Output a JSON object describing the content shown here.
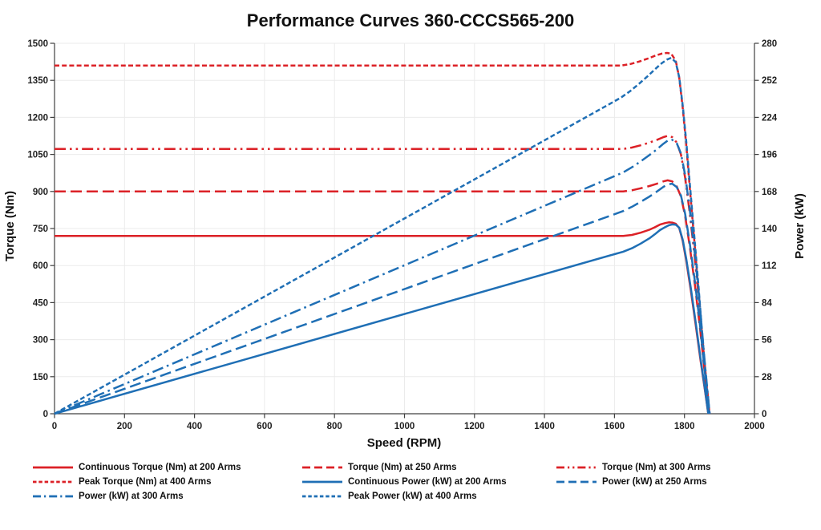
{
  "colors": {
    "torque_red": "#dc2127",
    "power_blue": "#1f6fb5",
    "grid": "#ebebeb",
    "axis": "#404040",
    "text": "#1f1f1f"
  },
  "chart_data": {
    "type": "line",
    "title": "Performance Curves 360-CCCS565-200",
    "xlabel": "Speed (RPM)",
    "ylabel_left": "Torque (Nm)",
    "ylabel_right": "Power (kW)",
    "xlim": [
      0,
      2000
    ],
    "ylim_left": [
      0,
      1500
    ],
    "ylim_right": [
      0,
      280
    ],
    "x_ticks": [
      0,
      200,
      400,
      600,
      800,
      1000,
      1200,
      1400,
      1600,
      1800,
      2000
    ],
    "y_left_ticks": [
      0,
      150,
      300,
      450,
      600,
      750,
      900,
      1050,
      1200,
      1350,
      1500
    ],
    "y_right_ticks": [
      0,
      28,
      56,
      84,
      112,
      140,
      168,
      196,
      224,
      252,
      280
    ],
    "grid": true,
    "legend_position": "bottom",
    "series": [
      {
        "name": "Continuous Torque (Nm) at 200 Arms",
        "slug": "continuous-torque-200-arms",
        "axis": "left",
        "color": "torque_red",
        "dash": "solid",
        "points": [
          [
            0,
            720
          ],
          [
            1600,
            720
          ],
          [
            1625,
            720
          ],
          [
            1650,
            724
          ],
          [
            1675,
            733
          ],
          [
            1700,
            745
          ],
          [
            1715,
            755
          ],
          [
            1730,
            766
          ],
          [
            1745,
            772
          ],
          [
            1755,
            775
          ],
          [
            1765,
            774
          ],
          [
            1775,
            769
          ],
          [
            1785,
            752
          ],
          [
            1795,
            700
          ],
          [
            1805,
            620
          ],
          [
            1818,
            500
          ],
          [
            1832,
            360
          ],
          [
            1846,
            215
          ],
          [
            1858,
            100
          ],
          [
            1868,
            0
          ]
        ]
      },
      {
        "name": "Torque (Nm) at 250 Arms",
        "slug": "torque-250-arms",
        "axis": "left",
        "color": "torque_red",
        "dash": "long-dash",
        "points": [
          [
            0,
            900
          ],
          [
            1600,
            900
          ],
          [
            1625,
            900
          ],
          [
            1650,
            905
          ],
          [
            1675,
            913
          ],
          [
            1700,
            922
          ],
          [
            1720,
            931
          ],
          [
            1740,
            941
          ],
          [
            1752,
            945
          ],
          [
            1765,
            941
          ],
          [
            1778,
            920
          ],
          [
            1790,
            880
          ],
          [
            1802,
            800
          ],
          [
            1815,
            680
          ],
          [
            1830,
            520
          ],
          [
            1845,
            340
          ],
          [
            1858,
            165
          ],
          [
            1870,
            0
          ]
        ]
      },
      {
        "name": "Torque (Nm) at 300 Arms",
        "slug": "torque-300-arms",
        "axis": "left",
        "color": "torque_red",
        "dash": "dash-dot-dot",
        "points": [
          [
            0,
            1072
          ],
          [
            1600,
            1072
          ],
          [
            1625,
            1072
          ],
          [
            1650,
            1078
          ],
          [
            1675,
            1087
          ],
          [
            1700,
            1098
          ],
          [
            1720,
            1108
          ],
          [
            1740,
            1120
          ],
          [
            1752,
            1125
          ],
          [
            1765,
            1120
          ],
          [
            1778,
            1098
          ],
          [
            1790,
            1050
          ],
          [
            1802,
            955
          ],
          [
            1815,
            815
          ],
          [
            1830,
            625
          ],
          [
            1845,
            410
          ],
          [
            1858,
            200
          ],
          [
            1872,
            0
          ]
        ]
      },
      {
        "name": "Peak Torque (Nm) at 400 Arms",
        "slug": "peak-torque-400-arms",
        "axis": "left",
        "color": "torque_red",
        "dash": "short-dash",
        "points": [
          [
            0,
            1410
          ],
          [
            1600,
            1410
          ],
          [
            1620,
            1410
          ],
          [
            1645,
            1416
          ],
          [
            1670,
            1426
          ],
          [
            1695,
            1438
          ],
          [
            1715,
            1449
          ],
          [
            1735,
            1458
          ],
          [
            1750,
            1461
          ],
          [
            1762,
            1458
          ],
          [
            1775,
            1430
          ],
          [
            1785,
            1360
          ],
          [
            1795,
            1240
          ],
          [
            1805,
            1090
          ],
          [
            1815,
            920
          ],
          [
            1827,
            720
          ],
          [
            1840,
            500
          ],
          [
            1852,
            290
          ],
          [
            1862,
            130
          ],
          [
            1872,
            0
          ]
        ]
      },
      {
        "name": "Continuous Power (kW) at 200 Arms",
        "slug": "continuous-power-200-arms",
        "axis": "right",
        "color": "power_blue",
        "dash": "solid",
        "points": [
          [
            0,
            0
          ],
          [
            1600,
            120.6
          ],
          [
            1625,
            122.5
          ],
          [
            1650,
            125.1
          ],
          [
            1675,
            128.6
          ],
          [
            1700,
            132.6
          ],
          [
            1715,
            135.6
          ],
          [
            1730,
            138.8
          ],
          [
            1745,
            141.1
          ],
          [
            1755,
            142.4
          ],
          [
            1765,
            143.1
          ],
          [
            1775,
            142.9
          ],
          [
            1785,
            140.6
          ],
          [
            1795,
            131.6
          ],
          [
            1805,
            117.2
          ],
          [
            1818,
            95.2
          ],
          [
            1832,
            69.1
          ],
          [
            1846,
            41.6
          ],
          [
            1858,
            19.5
          ],
          [
            1868,
            0
          ]
        ]
      },
      {
        "name": "Power (kW) at 250 Arms",
        "slug": "power-250-arms",
        "axis": "right",
        "color": "power_blue",
        "dash": "long-dash",
        "points": [
          [
            0,
            0
          ],
          [
            1600,
            150.8
          ],
          [
            1625,
            153.2
          ],
          [
            1650,
            156.4
          ],
          [
            1675,
            160.2
          ],
          [
            1700,
            164.1
          ],
          [
            1720,
            167.7
          ],
          [
            1740,
            171.5
          ],
          [
            1752,
            173.4
          ],
          [
            1765,
            173.9
          ],
          [
            1778,
            171.3
          ],
          [
            1790,
            165.0
          ],
          [
            1802,
            151.0
          ],
          [
            1815,
            129.2
          ],
          [
            1830,
            99.7
          ],
          [
            1845,
            65.7
          ],
          [
            1858,
            32.1
          ],
          [
            1870,
            0
          ]
        ]
      },
      {
        "name": "Power (kW) at 300 Arms",
        "slug": "power-300-arms",
        "axis": "right",
        "color": "power_blue",
        "dash": "dash-dot",
        "points": [
          [
            0,
            0
          ],
          [
            1600,
            179.6
          ],
          [
            1625,
            182.4
          ],
          [
            1650,
            186.3
          ],
          [
            1675,
            190.7
          ],
          [
            1700,
            195.5
          ],
          [
            1720,
            199.6
          ],
          [
            1740,
            204.1
          ],
          [
            1752,
            206.4
          ],
          [
            1765,
            207.0
          ],
          [
            1778,
            204.4
          ],
          [
            1790,
            196.8
          ],
          [
            1802,
            180.2
          ],
          [
            1815,
            154.9
          ],
          [
            1830,
            119.8
          ],
          [
            1845,
            79.2
          ],
          [
            1858,
            38.9
          ],
          [
            1872,
            0
          ]
        ]
      },
      {
        "name": "Peak Power (kW) at 400 Arms",
        "slug": "peak-power-400-arms",
        "axis": "right",
        "color": "power_blue",
        "dash": "short-dash",
        "points": [
          [
            0,
            0
          ],
          [
            1600,
            236.2
          ],
          [
            1620,
            239.2
          ],
          [
            1645,
            243.9
          ],
          [
            1670,
            249.4
          ],
          [
            1695,
            255.2
          ],
          [
            1715,
            260.2
          ],
          [
            1735,
            264.9
          ],
          [
            1750,
            267.7
          ],
          [
            1762,
            269.0
          ],
          [
            1775,
            265.8
          ],
          [
            1785,
            254.2
          ],
          [
            1795,
            233.1
          ],
          [
            1805,
            206.0
          ],
          [
            1815,
            174.9
          ],
          [
            1827,
            137.7
          ],
          [
            1840,
            96.3
          ],
          [
            1852,
            56.2
          ],
          [
            1862,
            25.3
          ],
          [
            1872,
            0
          ]
        ]
      }
    ]
  }
}
